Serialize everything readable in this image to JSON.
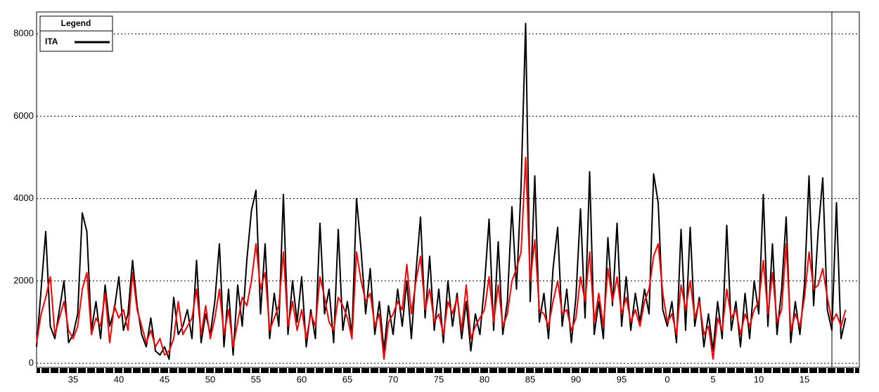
{
  "chart_data": {
    "type": "line",
    "legend_title": "Legend",
    "xlim": [
      1931,
      2021
    ],
    "ylim": [
      -100,
      8530
    ],
    "yticks": [
      0,
      2000,
      4000,
      6000,
      8000
    ],
    "xticks": [
      {
        "value": 1935,
        "label": "35"
      },
      {
        "value": 1940,
        "label": "40"
      },
      {
        "value": 1945,
        "label": "45"
      },
      {
        "value": 1950,
        "label": "50"
      },
      {
        "value": 1955,
        "label": "55"
      },
      {
        "value": 1960,
        "label": "60"
      },
      {
        "value": 1965,
        "label": "65"
      },
      {
        "value": 1970,
        "label": "70"
      },
      {
        "value": 1975,
        "label": "75"
      },
      {
        "value": 1980,
        "label": "80"
      },
      {
        "value": 1985,
        "label": "85"
      },
      {
        "value": 1990,
        "label": "90"
      },
      {
        "value": 1995,
        "label": "95"
      },
      {
        "value": 2000,
        "label": "0"
      },
      {
        "value": 2005,
        "label": "5"
      },
      {
        "value": 2010,
        "label": "10"
      },
      {
        "value": 2015,
        "label": "15"
      }
    ],
    "grid": true,
    "vline": 2018,
    "x": [
      1931,
      1931.5,
      1932,
      1932.5,
      1933,
      1933.5,
      1934,
      1934.5,
      1935,
      1935.5,
      1936,
      1936.5,
      1937,
      1937.5,
      1938,
      1938.5,
      1939,
      1939.5,
      1940,
      1940.5,
      1941,
      1941.5,
      1942,
      1942.5,
      1943,
      1943.5,
      1944,
      1944.5,
      1945,
      1945.5,
      1946,
      1946.5,
      1947,
      1947.5,
      1948,
      1948.5,
      1949,
      1949.5,
      1950,
      1950.5,
      1951,
      1951.5,
      1952,
      1952.5,
      1953,
      1953.5,
      1954,
      1954.5,
      1955,
      1955.5,
      1956,
      1956.5,
      1957,
      1957.5,
      1958,
      1958.5,
      1959,
      1959.5,
      1960,
      1960.5,
      1961,
      1961.5,
      1962,
      1962.5,
      1963,
      1963.5,
      1964,
      1964.5,
      1965,
      1965.5,
      1966,
      1966.5,
      1967,
      1967.5,
      1968,
      1968.5,
      1969,
      1969.5,
      1970,
      1970.5,
      1971,
      1971.5,
      1972,
      1972.5,
      1973,
      1973.5,
      1974,
      1974.5,
      1975,
      1975.5,
      1976,
      1976.5,
      1977,
      1977.5,
      1978,
      1978.5,
      1979,
      1979.5,
      1980,
      1980.5,
      1981,
      1981.5,
      1982,
      1982.5,
      1983,
      1983.5,
      1984,
      1984.5,
      1985,
      1985.5,
      1986,
      1986.5,
      1987,
      1987.5,
      1988,
      1988.5,
      1989,
      1989.5,
      1990,
      1990.5,
      1991,
      1991.5,
      1992,
      1992.5,
      1993,
      1993.5,
      1994,
      1994.5,
      1995,
      1995.5,
      1996,
      1996.5,
      1997,
      1997.5,
      1998,
      1998.5,
      1999,
      1999.5,
      2000,
      2000.5,
      2001,
      2001.5,
      2002,
      2002.5,
      2003,
      2003.5,
      2004,
      2004.5,
      2005,
      2005.5,
      2006,
      2006.5,
      2007,
      2007.5,
      2008,
      2008.5,
      2009,
      2009.5,
      2010,
      2010.5,
      2011,
      2011.5,
      2012,
      2012.5,
      2013,
      2013.5,
      2014,
      2014.5,
      2015,
      2015.5,
      2016,
      2016.5,
      2017,
      2017.5,
      2018,
      2018.5,
      2019,
      2019.5
    ],
    "series": [
      {
        "name": "ITA",
        "color": "#000000",
        "values": [
          400,
          1800,
          3200,
          900,
          600,
          1300,
          2000,
          500,
          700,
          1200,
          3650,
          3200,
          800,
          1500,
          600,
          1900,
          900,
          1300,
          2100,
          800,
          1200,
          2500,
          1400,
          700,
          400,
          1100,
          300,
          200,
          400,
          100,
          1600,
          700,
          900,
          1300,
          600,
          2500,
          500,
          1200,
          700,
          1500,
          2900,
          400,
          1800,
          200,
          1900,
          900,
          2500,
          3700,
          4200,
          1200,
          2900,
          600,
          1700,
          900,
          4100,
          700,
          2000,
          1000,
          2100,
          400,
          1300,
          600,
          3400,
          1200,
          1800,
          500,
          3250,
          800,
          1500,
          700,
          4000,
          2750,
          1200,
          2300,
          700,
          1500,
          300,
          1400,
          700,
          1800,
          900,
          2000,
          600,
          2200,
          3550,
          1100,
          2600,
          800,
          1800,
          500,
          2000,
          900,
          1700,
          600,
          1500,
          300,
          1200,
          700,
          1900,
          3500,
          800,
          2950,
          700,
          1500,
          3800,
          1800,
          4300,
          8250,
          1500,
          4550,
          1000,
          1700,
          600,
          2300,
          3300,
          900,
          1800,
          500,
          1600,
          3750,
          1100,
          4650,
          700,
          1500,
          600,
          3050,
          1400,
          3400,
          900,
          2100,
          800,
          1700,
          1000,
          1800,
          1200,
          4600,
          3900,
          1300,
          900,
          1500,
          500,
          3250,
          800,
          3300,
          900,
          1600,
          400,
          1200,
          300,
          1500,
          600,
          3350,
          800,
          1500,
          400,
          1700,
          600,
          2000,
          1200,
          4100,
          900,
          2900,
          700,
          1800,
          3550,
          500,
          1500,
          700,
          1900,
          4550,
          1400,
          3200,
          4500,
          1300,
          800,
          3900,
          600,
          1100
        ]
      },
      {
        "color": "#ff0000",
        "values": [
          500,
          1200,
          1600,
          2100,
          700,
          1100,
          1500,
          800,
          600,
          900,
          1800,
          2200,
          700,
          1100,
          900,
          1700,
          500,
          1400,
          1100,
          1300,
          800,
          2200,
          1300,
          900,
          500,
          800,
          400,
          600,
          200,
          300,
          600,
          1500,
          700,
          900,
          1100,
          1800,
          700,
          1400,
          600,
          1100,
          1800,
          700,
          1300,
          400,
          1000,
          1600,
          1400,
          2000,
          2900,
          1800,
          2200,
          800,
          1100,
          1400,
          2700,
          900,
          1500,
          800,
          1300,
          600,
          1200,
          900,
          2100,
          1600,
          1000,
          800,
          1600,
          1400,
          1100,
          600,
          2700,
          2000,
          1500,
          1700,
          900,
          1200,
          100,
          1000,
          1200,
          1500,
          1300,
          2400,
          1200,
          2000,
          2600,
          1300,
          1800,
          1000,
          1200,
          700,
          1500,
          1200,
          1600,
          800,
          1900,
          600,
          900,
          1100,
          1300,
          2100,
          1000,
          1900,
          900,
          1200,
          2000,
          2300,
          2700,
          5000,
          2000,
          3000,
          1300,
          1200,
          900,
          1500,
          2000,
          1200,
          1300,
          800,
          1100,
          2100,
          1500,
          2700,
          1000,
          1700,
          900,
          2300,
          1500,
          2100,
          1200,
          1600,
          1000,
          1300,
          900,
          1500,
          1800,
          2600,
          2900,
          1700,
          1000,
          1200,
          700,
          1900,
          1300,
          2000,
          1100,
          1500,
          700,
          900,
          100,
          1100,
          800,
          1800,
          1100,
          1300,
          700,
          1200,
          900,
          1300,
          1500,
          2500,
          1200,
          2200,
          1000,
          1300,
          2900,
          800,
          1200,
          900,
          1600,
          2700,
          1800,
          1900,
          2300,
          1600,
          1000,
          1200,
          900,
          1300
        ]
      }
    ]
  }
}
